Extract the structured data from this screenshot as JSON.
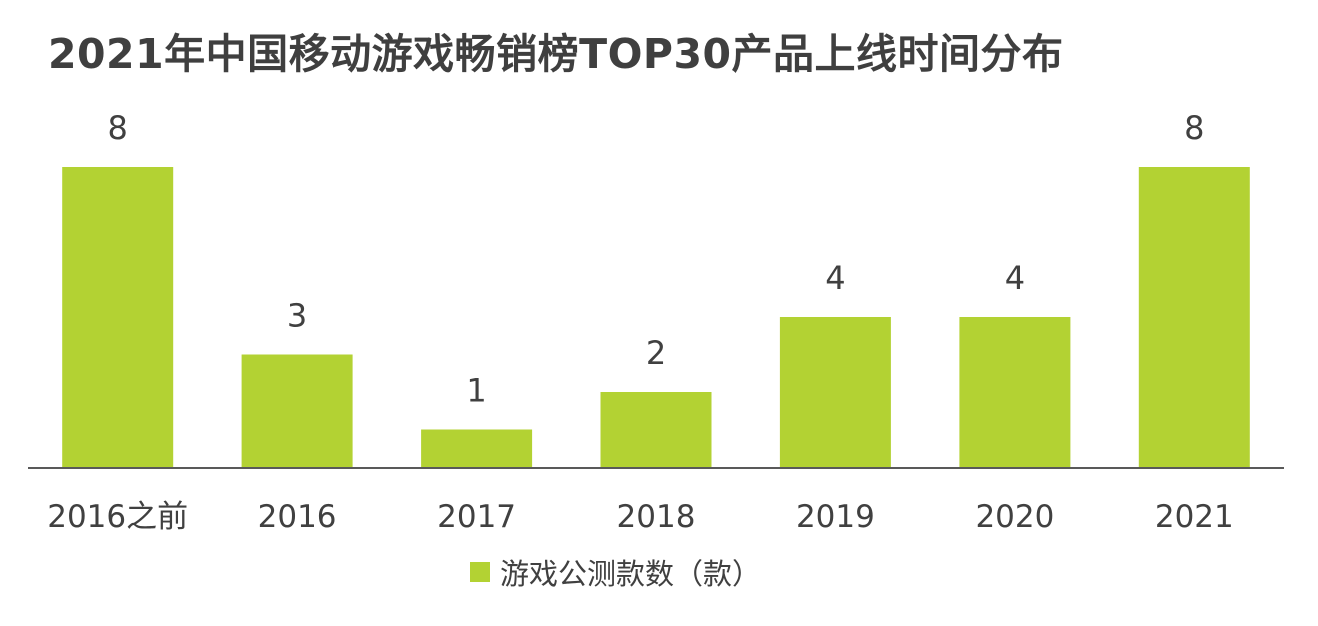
{
  "chart_data": {
    "type": "bar",
    "title": "2021年中国移动游戏畅销榜TOP30产品上线时间分布",
    "categories": [
      "2016之前",
      "2016",
      "2017",
      "2018",
      "2019",
      "2020",
      "2021"
    ],
    "series": [
      {
        "name": "游戏公测款数（款）",
        "values": [
          8,
          3,
          1,
          2,
          4,
          4,
          8
        ],
        "color": "#b3d233"
      }
    ],
    "xlabel": "",
    "ylabel": "",
    "ylim": [
      0,
      8
    ],
    "grid": false,
    "legend": "bottom",
    "axis_color": "#595959"
  }
}
